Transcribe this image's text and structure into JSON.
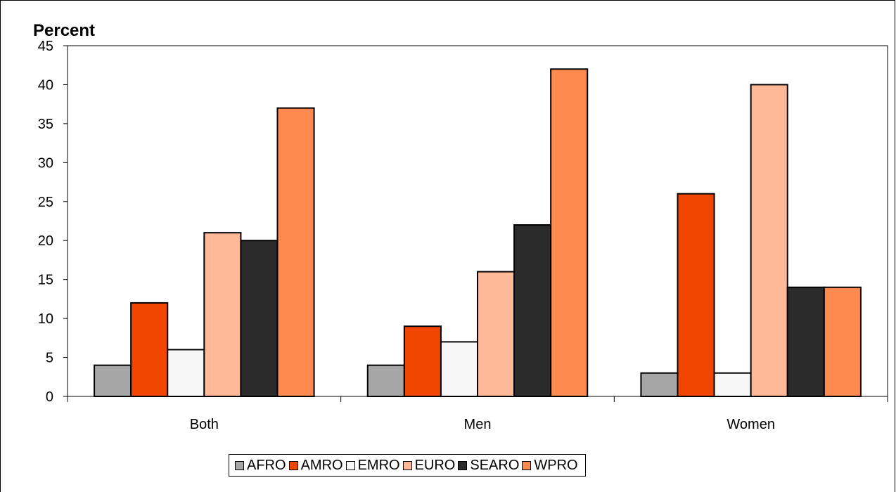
{
  "chart_data": {
    "type": "bar",
    "title": "",
    "xlabel": "",
    "ylabel": "Percent",
    "ylim": [
      0,
      45
    ],
    "yticks": [
      0,
      5,
      10,
      15,
      20,
      25,
      30,
      35,
      40,
      45
    ],
    "categories": [
      "Both",
      "Men",
      "Women"
    ],
    "series": [
      {
        "name": "AFRO",
        "color": "#a6a6a6",
        "values": [
          4,
          4,
          3
        ]
      },
      {
        "name": "AMRO",
        "color": "#f04600",
        "values": [
          12,
          9,
          26
        ]
      },
      {
        "name": "EMRO",
        "color": "#f7f7f7",
        "values": [
          6,
          7,
          3
        ]
      },
      {
        "name": "EURO",
        "color": "#ffb999",
        "values": [
          21,
          16,
          40
        ]
      },
      {
        "name": "SEARO",
        "color": "#2b2b2b",
        "values": [
          20,
          22,
          14
        ]
      },
      {
        "name": "WPRO",
        "color": "#ff8a4f",
        "values": [
          37,
          42,
          14
        ]
      }
    ],
    "grid": false,
    "legend_position": "bottom"
  }
}
